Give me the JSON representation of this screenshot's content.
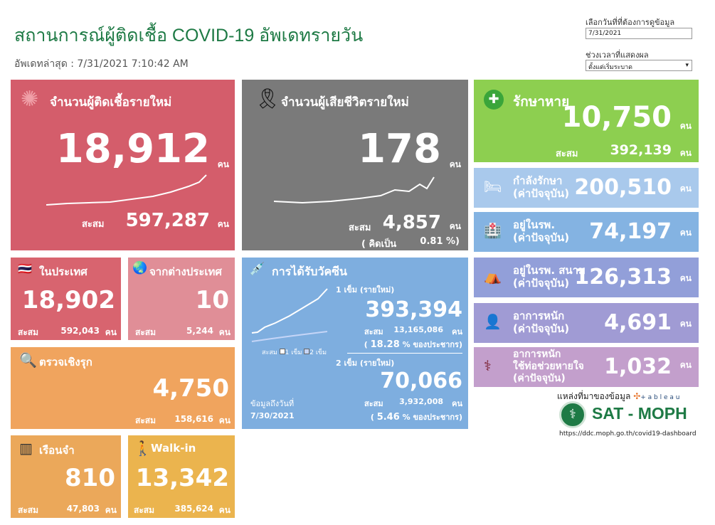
{
  "header": {
    "title": "สถานการณ์ผู้ติดเชื้อ COVID-19 อัพเดทรายวัน",
    "updated": "อัพเดทล่าสุด : 7/31/2021 7:10:42 AM"
  },
  "controls": {
    "date_label": "เลือกวันที่ที่ต้องการดูข้อมูล",
    "date_value": "7/31/2021",
    "range_label": "ช่วงเวลาที่แสดงผล",
    "range_value": "ตั้งแต่เริ่มระบาด"
  },
  "unit": "คน",
  "cum": "สะสม",
  "cases": {
    "title": "จำนวนผู้ติดเชื้อรายใหม่",
    "value": "18,912",
    "cumulative": "597,287",
    "color": "#d45d6b"
  },
  "deaths": {
    "title": "จำนวนผู้เสียชีวิตรายใหม่",
    "value": "178",
    "cumulative": "4,857",
    "rate_label": "( คิดเป็น",
    "rate": "0.81 %)",
    "color": "#7a7a7a"
  },
  "recovered": {
    "title": "รักษาหาย",
    "value": "10,750",
    "cumulative": "392,139",
    "color": "#8dcf50"
  },
  "status_rows": [
    {
      "label": "กำลังรักษา",
      "sub": "(ค่าปัจจุบัน)",
      "value": "200,510",
      "color": "#a9c9ec",
      "icon": "hospital-bed-icon"
    },
    {
      "label": "อยู่ในรพ.",
      "sub": "(ค่าปัจจุบัน)",
      "value": "74,197",
      "color": "#84b3e2",
      "icon": "hospital-icon"
    },
    {
      "label": "อยู่ในรพ. สนาม",
      "sub": "(ค่าปัจจุบัน)",
      "value": "126,313",
      "color": "#929fd9",
      "icon": "tent-icon"
    },
    {
      "label": "อาการหนัก",
      "sub": "(ค่าปัจจุบัน)",
      "value": "4,691",
      "color": "#a09bd4",
      "icon": "patient-icon"
    },
    {
      "label": "อาการหนัก",
      "label2": "ใช้ท่อช่วยหายใจ",
      "sub": "(ค่าปัจจุบัน)",
      "value": "1,032",
      "color": "#c39fcc",
      "icon": "ventilator-icon"
    }
  ],
  "domestic": {
    "title": "ในประเทศ",
    "value": "18,902",
    "cumulative": "592,043"
  },
  "imported": {
    "title": "จากต่างประเทศ",
    "value": "10",
    "cumulative": "5,244"
  },
  "active": {
    "title": "ตรวจเชิงรุก",
    "value": "4,750",
    "cumulative": "158,616"
  },
  "prison": {
    "title": "เรือนจำ",
    "value": "810",
    "cumulative": "47,803"
  },
  "walkin": {
    "title": "Walk-in",
    "value": "13,342",
    "cumulative": "385,624"
  },
  "vaccine": {
    "title": "การได้รับวัคซีน",
    "dose1_label": "1 เข็ม (รายใหม่)",
    "dose1": "393,394",
    "dose1_cum": "13,165,086",
    "dose1_pct": "18.28",
    "dose2_label": "2 เข็ม (รายใหม่)",
    "dose2": "70,066",
    "dose2_cum": "3,932,008",
    "dose2_pct": "5.46",
    "pct_suffix": "% ของประชากร)",
    "pct_prefix": "(",
    "legend_cum": "สะสม",
    "legend_1": "1 เข็ม",
    "legend_2": "2 เข็ม",
    "asof_label": "ข้อมูลถึงวันที่",
    "asof": "7/30/2021"
  },
  "source": {
    "label": "แหล่งที่มาของข้อมูล",
    "tableau": "+ a b l e a u",
    "brand": "SAT - MOPH",
    "url": "https://ddc.moph.go.th/covid19-dashboard"
  }
}
